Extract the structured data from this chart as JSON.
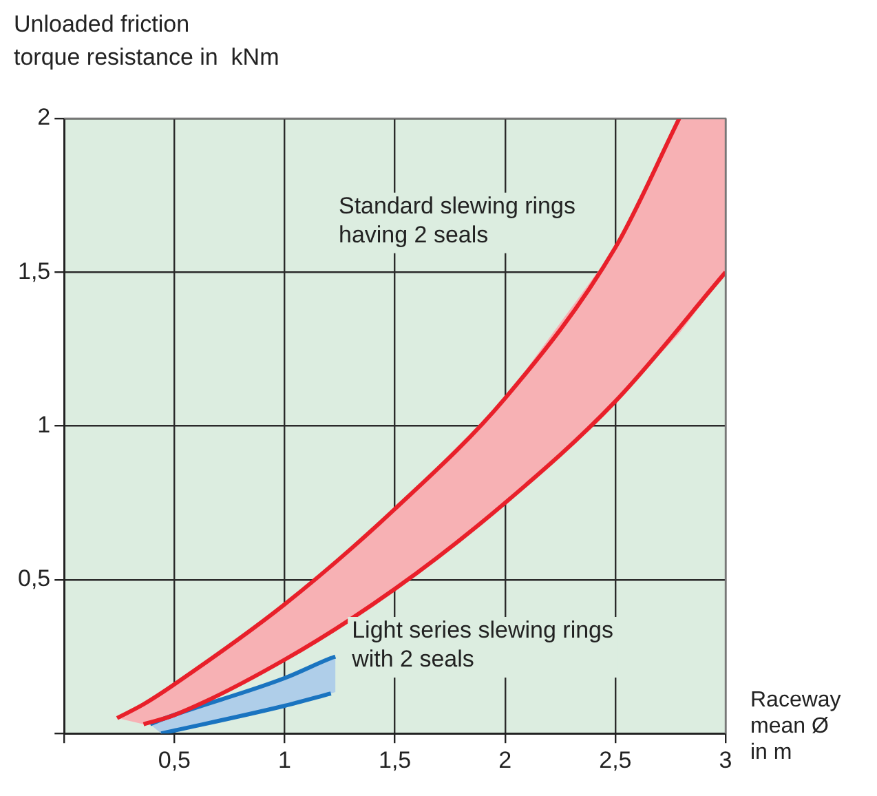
{
  "chart_data": {
    "type": "line",
    "ylabel": "Unloaded friction\ntorque resistance in  kNm",
    "xlabel": "Raceway\nmean Ø\nin m",
    "xlim": [
      0,
      3
    ],
    "ylim": [
      0,
      2
    ],
    "xticks": [
      {
        "value": 0,
        "label": null
      },
      {
        "value": 0.5,
        "label": "0,5"
      },
      1,
      {
        "value": 1.5,
        "label": "1,5"
      },
      2,
      {
        "value": 2.5,
        "label": "2,5"
      },
      3
    ],
    "yticks": [
      {
        "value": 0,
        "label": null
      },
      {
        "value": 0.5,
        "label": "0,5"
      },
      1,
      {
        "value": 1.5,
        "label": "1,5"
      },
      2
    ],
    "grid": true,
    "legend": false,
    "marker": "none",
    "line_style": "solid",
    "series": [
      {
        "type": "line",
        "color": "#e8202a",
        "x": [
          0.36,
          0.5,
          1,
          1.5,
          2,
          2.5,
          3
        ],
        "values": [
          0.03,
          0.06,
          0.24,
          0.47,
          0.75,
          1.08,
          1.5
        ]
      },
      {
        "type": "line",
        "color": "#e8202a",
        "x": [
          0.24,
          0.36,
          0.5,
          1,
          1.5,
          2,
          2.5,
          2.79,
          3
        ],
        "values": [
          0.05,
          0.095,
          0.16,
          0.42,
          0.73,
          1.09,
          1.58,
          2.0,
          null
        ],
        "lower": [
          0.05,
          0.03,
          0.06,
          0.24,
          0.47,
          0.75,
          1.08,
          1.3,
          1.5
        ],
        "upper": [
          0.05,
          0.095,
          0.16,
          0.42,
          0.73,
          1.09,
          1.58,
          2.0,
          2.0
        ]
      },
      {
        "type": "line",
        "color": "#1a74c0",
        "x": [
          0.44,
          1,
          1.21
        ],
        "values": [
          0.0,
          0.09,
          0.13
        ]
      },
      {
        "type": "line",
        "color": "#1a74c0",
        "x": [
          0.39,
          0.44,
          1,
          1.21,
          1.23
        ],
        "values": [
          0.03,
          0.045,
          0.18,
          0.245,
          0.25
        ],
        "lower": [
          0.03,
          0.0,
          0.09,
          0.13,
          0.135
        ],
        "upper": [
          0.03,
          0.045,
          0.18,
          0.245,
          0.25
        ]
      }
    ],
    "annotations": [
      "Standard slewing rings\nhaving 2 seals",
      "Light series slewing rings\nwith 2 seals"
    ]
  }
}
